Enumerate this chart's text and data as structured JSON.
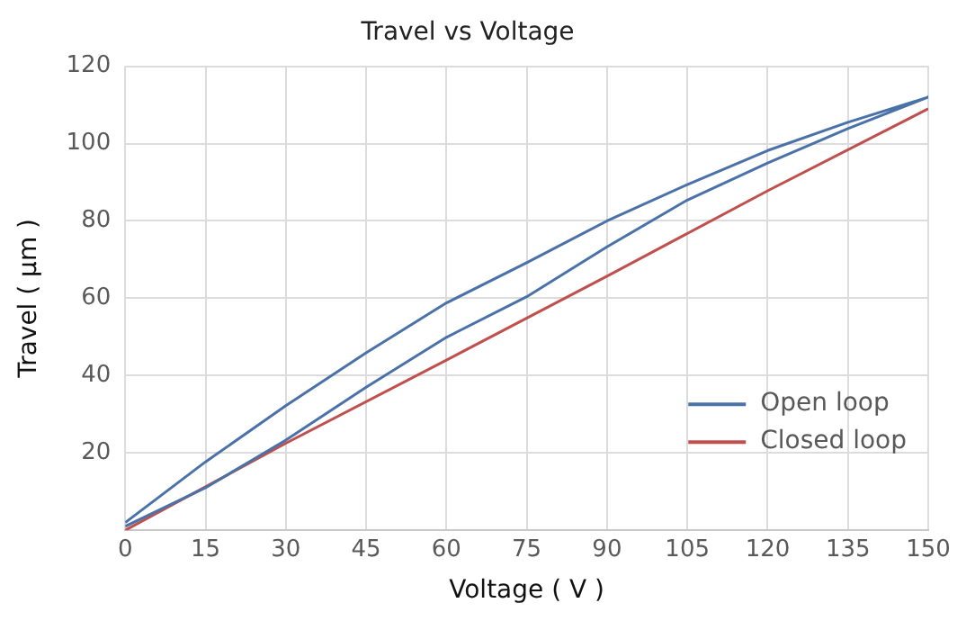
{
  "chart_data": {
    "type": "line",
    "title": "Travel vs Voltage",
    "xlabel": "Voltage ( V )",
    "ylabel": "Travel ( μm )",
    "xlim": [
      0,
      150
    ],
    "xticks": [
      0,
      15,
      30,
      45,
      60,
      75,
      90,
      105,
      120,
      135,
      150
    ],
    "ylim": [
      0,
      120
    ],
    "yticks": [
      {
        "value": 0,
        "label": null
      },
      20,
      40,
      60,
      80,
      100,
      120
    ],
    "grid": true,
    "legend": "bottom right",
    "marker": "none",
    "line_style": "solid",
    "series": [
      {
        "name": "Open loop",
        "color": "#4a72a8",
        "x": [
          0,
          15,
          30,
          45,
          60,
          75,
          90,
          105,
          120,
          135,
          150,
          135,
          120,
          105,
          90,
          75,
          60,
          45,
          30,
          15,
          0
        ],
        "values": [
          1,
          11,
          23.3,
          37,
          49.9,
          60.4,
          73.3,
          85.4,
          95,
          103.9,
          112,
          105.5,
          98.2,
          89.4,
          80,
          69.2,
          58.8,
          45.9,
          32.2,
          17.7,
          2
        ]
      },
      {
        "name": "Closed loop",
        "color": "#c0504d",
        "x": [
          0,
          30,
          60,
          90,
          120,
          150
        ],
        "values": [
          0,
          22.5,
          44,
          65.7,
          87.8,
          109
        ]
      }
    ]
  }
}
